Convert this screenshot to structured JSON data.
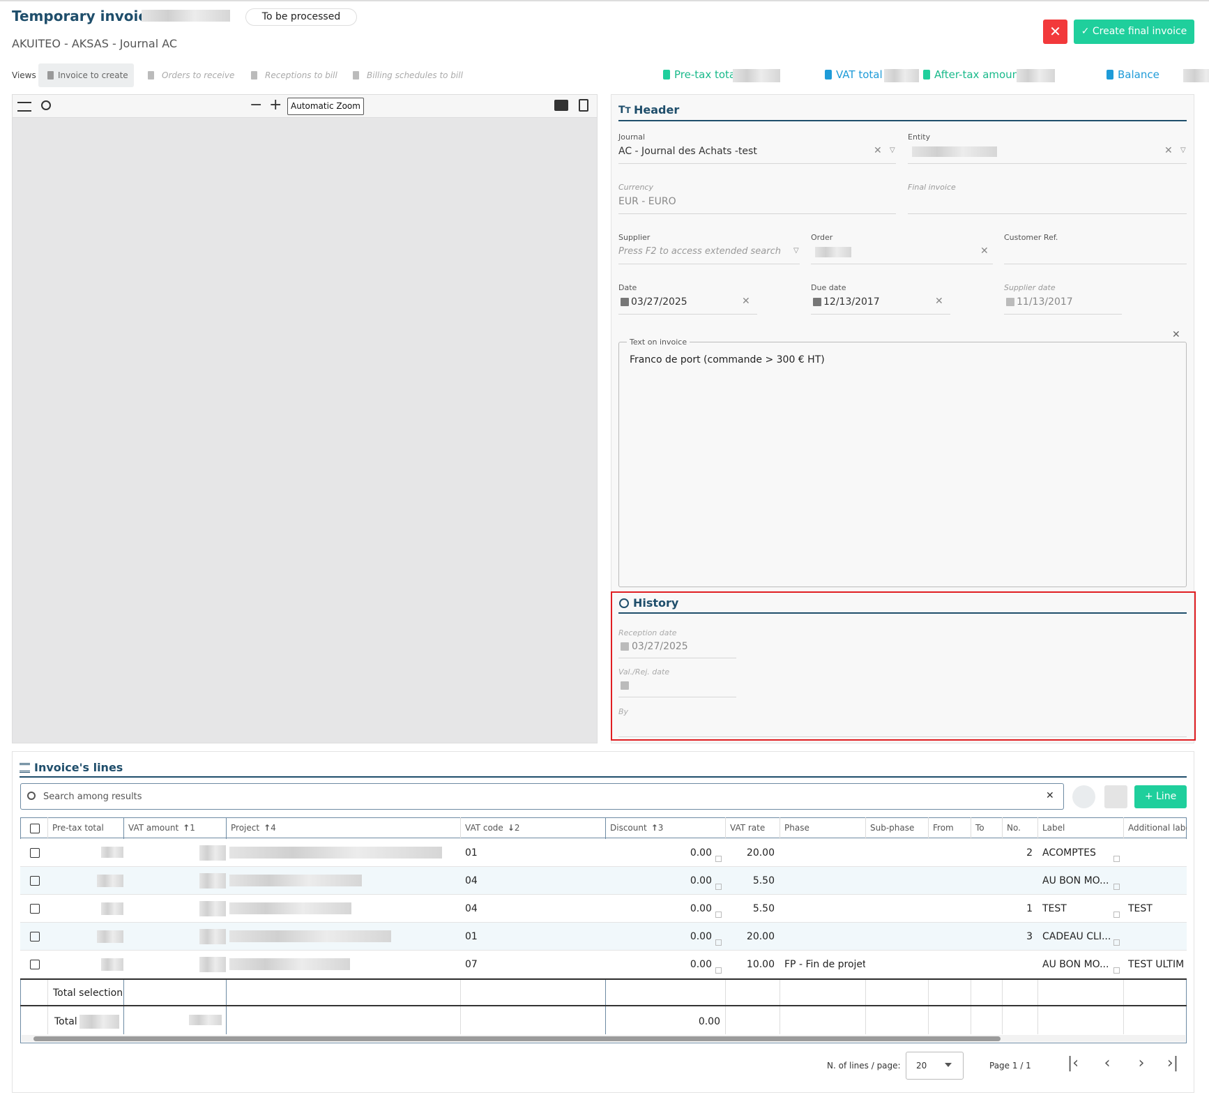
{
  "header": {
    "title": "Temporary invoice -",
    "status": "To be processed",
    "subtitle": "AKUITEO - AKSAS - Journal AC",
    "create_button": "Create final invoice"
  },
  "views": {
    "label": "Views",
    "tabs": [
      "Invoice to create",
      "Orders to receive",
      "Receptions to bill",
      "Billing schedules to bill"
    ]
  },
  "totals": [
    "Pre-tax total",
    "VAT total",
    "After-tax amount",
    "Balance"
  ],
  "viewer": {
    "zoom": "Automatic Zoom"
  },
  "header_section": {
    "title": "Header",
    "fields": [
      {
        "label": "Journal",
        "value": "AC - Journal des Achats -test"
      },
      {
        "label": "Entity"
      },
      {
        "label": "Currency",
        "value": "EUR - EURO"
      },
      {
        "label": "Final invoice"
      },
      {
        "label": "Supplier",
        "placeholder": "Press F2 to access extended search"
      },
      {
        "label": "Order"
      },
      {
        "label": "Customer Ref."
      },
      {
        "label": "Date",
        "value": "03/27/2025"
      },
      {
        "label": "Due date",
        "value": "12/13/2017"
      },
      {
        "label": "Supplier date",
        "value": "11/13/2017"
      }
    ],
    "text_on_invoice": {
      "label": "Text on invoice",
      "value": "Franco de port (commande > 300 € HT)"
    }
  },
  "history": {
    "title": "History",
    "fields": [
      {
        "label": "Reception date",
        "value": "03/27/2025"
      },
      {
        "label": "Val./Rej. date"
      },
      {
        "label": "By"
      }
    ]
  },
  "lines": {
    "title": "Invoice's lines",
    "search_placeholder": "Search among results",
    "add_button": "Line",
    "columns": [
      {
        "label": "Pre-tax total"
      },
      {
        "label": "VAT amount",
        "sort": "1",
        "order": "asc"
      },
      {
        "label": "Project",
        "sort": "4",
        "order": "asc"
      },
      {
        "label": "VAT code",
        "sort": "2",
        "order": "desc"
      },
      {
        "label": "Discount",
        "sort": "3",
        "order": "asc"
      },
      {
        "label": "VAT rate"
      },
      {
        "label": "Phase"
      },
      {
        "label": "Sub-phase"
      },
      {
        "label": "From"
      },
      {
        "label": "To"
      },
      {
        "label": "No."
      },
      {
        "label": "Label"
      },
      {
        "label": "Additional label"
      }
    ],
    "rows": [
      {
        "vat_code": "01",
        "discount": "0.00",
        "vat_rate": "20.00",
        "no": "2",
        "label": "ACOMPTES"
      },
      {
        "vat_code": "04",
        "discount": "0.00",
        "vat_rate": "5.50",
        "label": "AU BON MO..."
      },
      {
        "vat_code": "04",
        "discount": "0.00",
        "vat_rate": "5.50",
        "no": "1",
        "label": "TEST",
        "additional_label": "TEST"
      },
      {
        "vat_code": "01",
        "discount": "0.00",
        "vat_rate": "20.00",
        "no": "3",
        "label": "CADEAU CLI..."
      },
      {
        "vat_code": "07",
        "discount": "0.00",
        "vat_rate": "10.00",
        "phase": "FP - Fin de projet",
        "label": "AU BON MO...",
        "additional_label": "TEST ULTIM"
      }
    ],
    "total_selection": "Total selection",
    "total_label": "Total",
    "total_discount": "0.00",
    "pagination": {
      "label": "N. of lines / page:",
      "page_size": "20",
      "page": "Page 1 / 1"
    }
  }
}
